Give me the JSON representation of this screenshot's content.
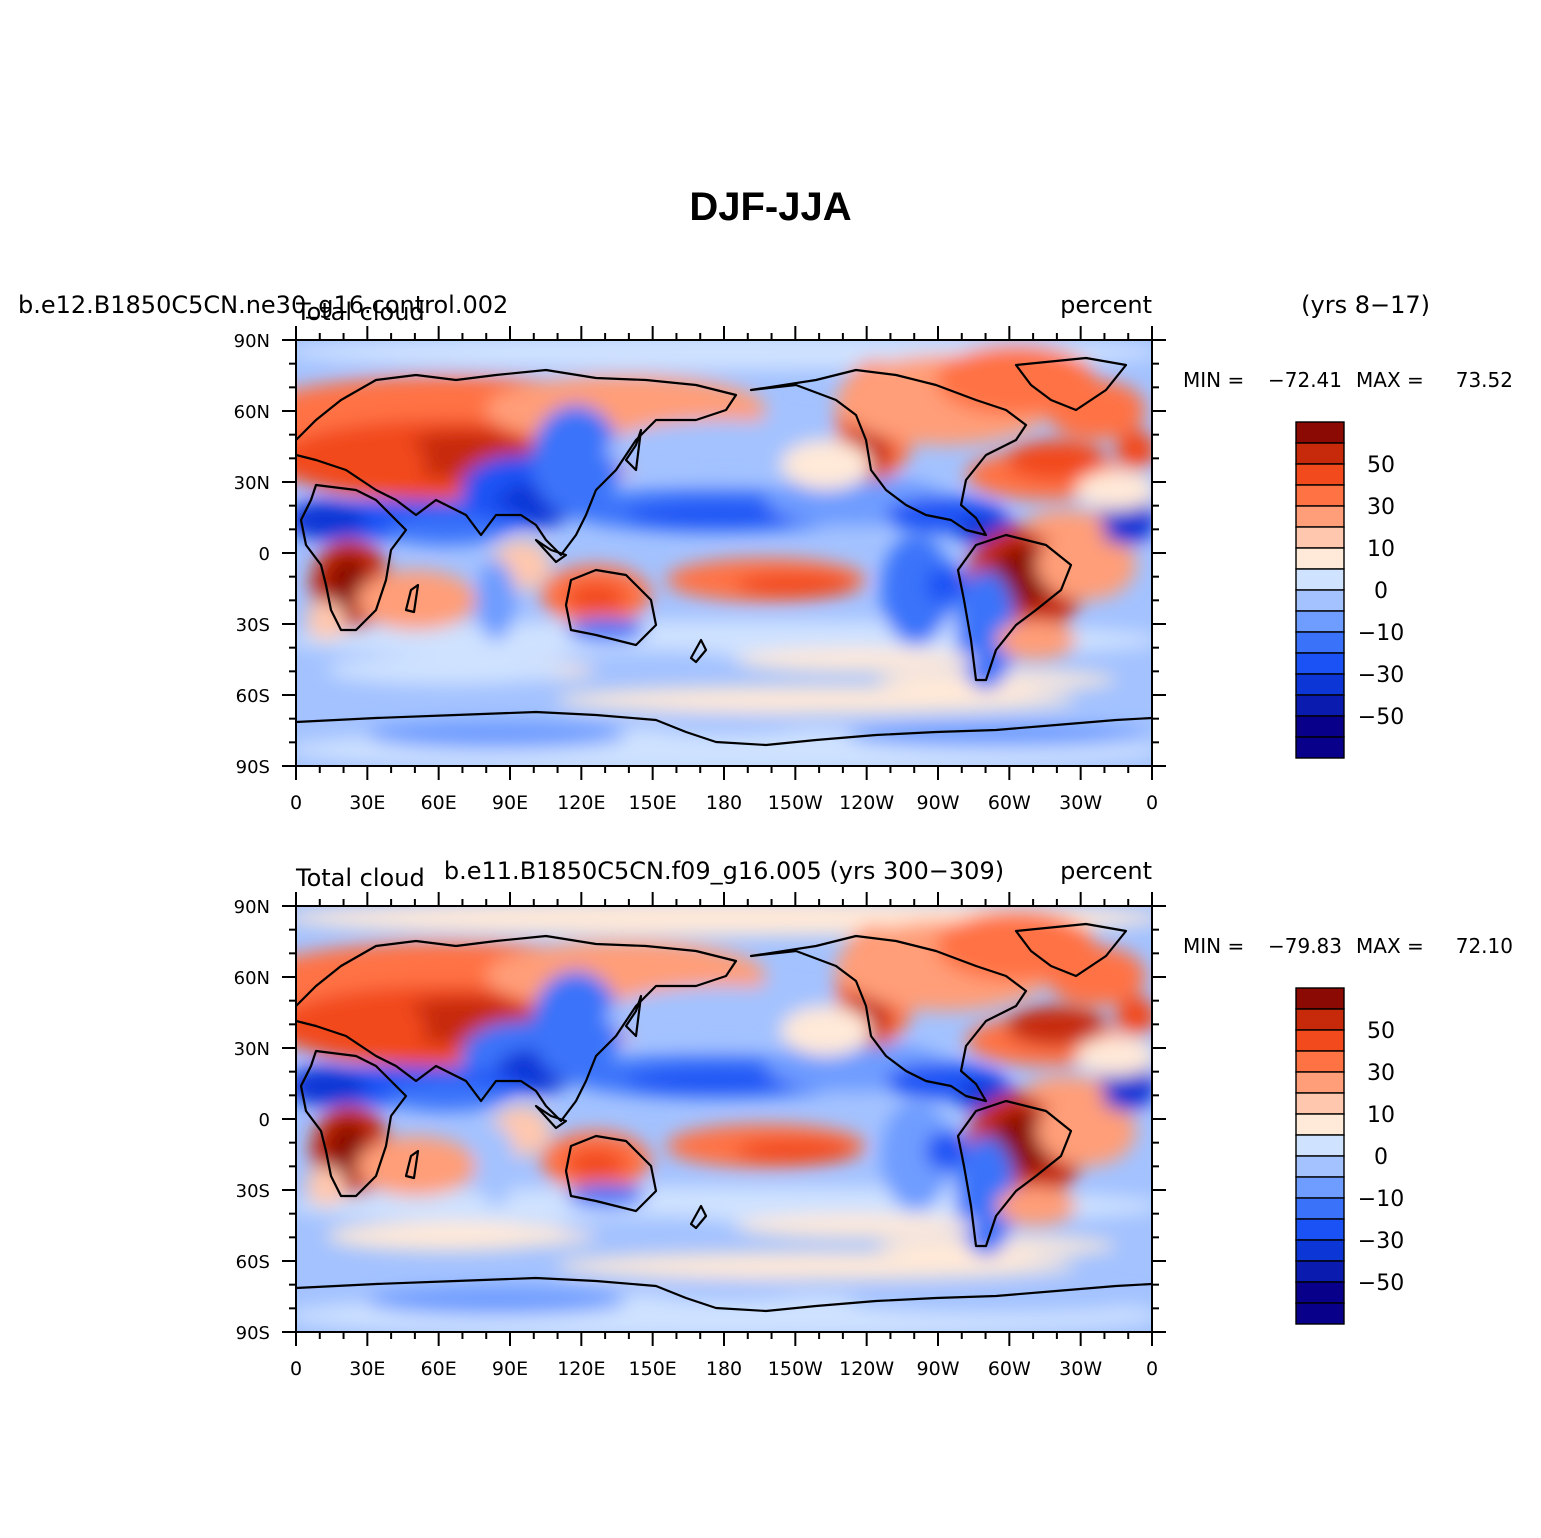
{
  "title": "DJF-JJA",
  "palette": [
    "#08008a",
    "#0a1cb0",
    "#0c36d6",
    "#1a52f5",
    "#3a73fa",
    "#6e9cff",
    "#a3c2ff",
    "#cfe2ff",
    "#ffe9d8",
    "#ffc7ae",
    "#ff9e78",
    "#ff7244",
    "#f24a1c",
    "#c72a0a",
    "#8c0a04"
  ],
  "ocean_colors": [
    "#cfe2ff",
    "#a3c2ff",
    "#ffe9d8",
    "#ffc7ae"
  ],
  "land_colors": [
    "#ff7244",
    "#f24a1c",
    "#c72a0a",
    "#ff9e78"
  ],
  "panels": [
    {
      "case_name": "b.e12.B1850C5CN.ne30_g16.control.002",
      "years": "(yrs 8−17)",
      "variable": "Total cloud",
      "units": "percent",
      "min_label": "MIN =",
      "min_value": "−72.41",
      "max_label": "MAX =",
      "max_value": "73.52"
    },
    {
      "case_name": "b.e11.B1850C5CN.f09_g16.005 (yrs 300−309)",
      "years": "",
      "variable": "Total cloud",
      "units": "percent",
      "min_label": "MIN =",
      "min_value": "−79.83",
      "max_label": "MAX =",
      "max_value": "72.10"
    }
  ],
  "lat_labels": [
    "90N",
    "60N",
    "30N",
    "0",
    "30S",
    "60S",
    "90S"
  ],
  "lon_labels": [
    "0",
    "30E",
    "60E",
    "90E",
    "120E",
    "150E",
    "180",
    "150W",
    "120W",
    "90W",
    "60W",
    "30W",
    "0"
  ],
  "colorbar_labels": [
    "50",
    "30",
    "10",
    "0",
    "−10",
    "−30",
    "−50"
  ]
}
